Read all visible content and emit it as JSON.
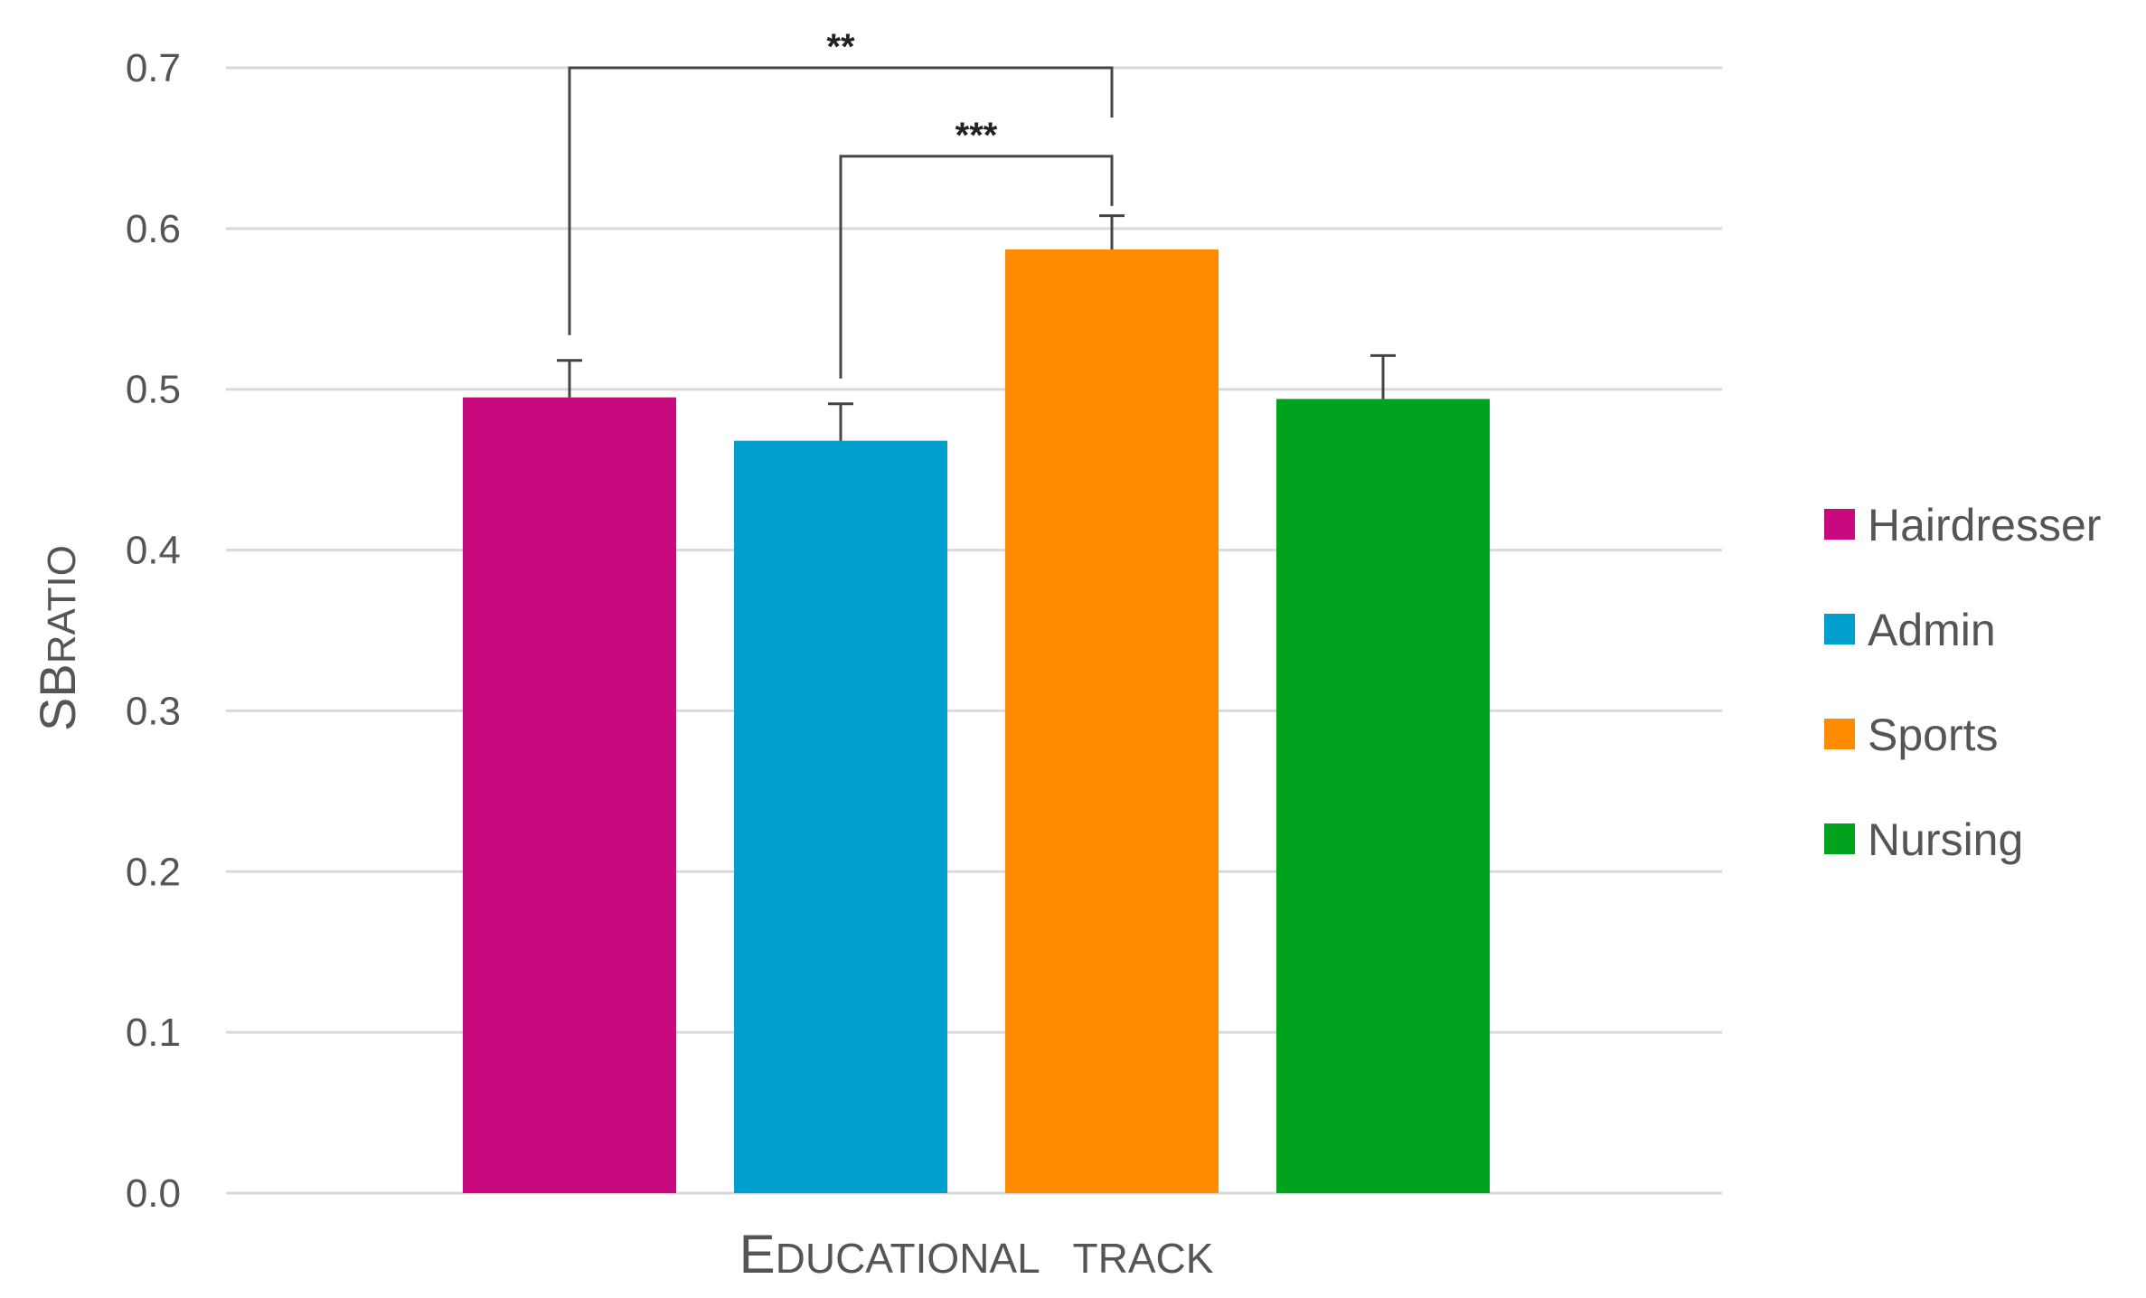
{
  "chart_data": {
    "type": "bar",
    "categories": [
      "Hairdresser",
      "Admin",
      "Sports",
      "Nursing"
    ],
    "values": [
      0.495,
      0.468,
      0.587,
      0.494
    ],
    "errors": [
      0.023,
      0.023,
      0.021,
      0.027
    ],
    "colors": [
      "#c9097e",
      "#009fcd",
      "#ff8c00",
      "#00a21e"
    ],
    "ylim": [
      0,
      0.7
    ],
    "yticks": [
      "0.0",
      "0.1",
      "0.2",
      "0.3",
      "0.4",
      "0.5",
      "0.6",
      "0.7"
    ],
    "ytick_values": [
      0,
      0.1,
      0.2,
      0.3,
      0.4,
      0.5,
      0.6,
      0.7
    ],
    "ylabel_cap": "SB",
    "ylabel_rest": "RATIO",
    "xlabel_cap": "E",
    "xlabel_rest": "DUCATIONAL   TRACK",
    "grid": true,
    "legend_position": "right",
    "legend": [
      "Hairdresser",
      "Admin",
      "Sports",
      "Nursing"
    ],
    "significance": [
      {
        "from": 0,
        "to": 2,
        "label": "**",
        "level": 0.7
      },
      {
        "from": 1,
        "to": 2,
        "label": "***",
        "level": 0.645
      }
    ]
  }
}
